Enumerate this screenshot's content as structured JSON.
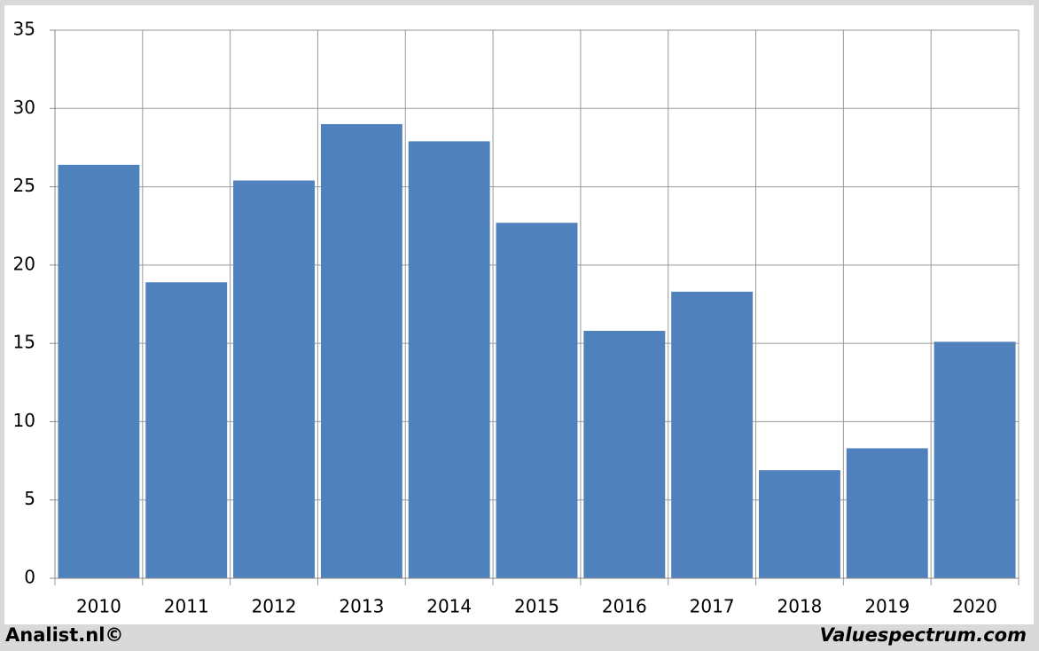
{
  "chart_data": {
    "type": "bar",
    "categories": [
      "2010",
      "2011",
      "2012",
      "2013",
      "2014",
      "2015",
      "2016",
      "2017",
      "2018",
      "2019",
      "2020"
    ],
    "values": [
      26.4,
      18.9,
      25.4,
      29.0,
      27.9,
      22.7,
      15.8,
      18.3,
      6.9,
      8.3,
      15.1
    ],
    "color": "#4f81bd",
    "ylim": [
      0,
      35
    ],
    "yticks": [
      0,
      5,
      10,
      15,
      20,
      25,
      30,
      35
    ],
    "grid": true,
    "source": "Analist.nl©",
    "credit": "Valuespectrum.com"
  }
}
